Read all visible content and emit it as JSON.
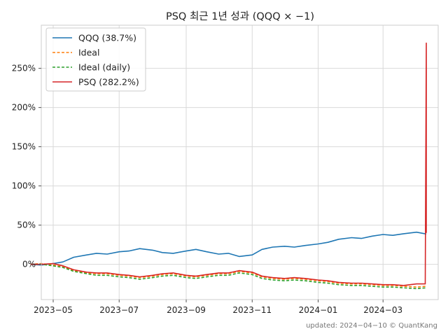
{
  "chart_data": {
    "type": "line",
    "title": "PSQ 최근 1년 성과 (QQQ × −1)",
    "xlabel": "",
    "ylabel": "",
    "x_tick_labels": [
      "2023−05",
      "2023−07",
      "2023−09",
      "2023−11",
      "2024−01",
      "2024−03"
    ],
    "y_tick_labels": [
      "0%",
      "50%",
      "100%",
      "150%",
      "200%",
      "250%"
    ],
    "y_ticks": [
      0,
      50,
      100,
      150,
      200,
      250
    ],
    "x_ticks": [
      "2023-05-01",
      "2023-07-01",
      "2023-09-01",
      "2023-11-01",
      "2024-01-01",
      "2024-03-01"
    ],
    "xlim": [
      "2023-04-20",
      "2024-04-21"
    ],
    "ylim": [
      -45,
      305
    ],
    "grid": true,
    "legend_position": "top-left",
    "series": [
      {
        "name": "QQQ (38.7%)",
        "color": "#1f77b4",
        "style": "solid",
        "x": [
          "2023-04-10",
          "2023-04-20",
          "2023-05-01",
          "2023-05-10",
          "2023-05-20",
          "2023-06-01",
          "2023-06-10",
          "2023-06-20",
          "2023-07-01",
          "2023-07-10",
          "2023-07-20",
          "2023-08-01",
          "2023-08-10",
          "2023-08-20",
          "2023-09-01",
          "2023-09-10",
          "2023-09-20",
          "2023-10-01",
          "2023-10-10",
          "2023-10-20",
          "2023-11-01",
          "2023-11-10",
          "2023-11-20",
          "2023-12-01",
          "2023-12-10",
          "2023-12-20",
          "2024-01-01",
          "2024-01-10",
          "2024-01-20",
          "2024-02-01",
          "2024-02-10",
          "2024-02-20",
          "2024-03-01",
          "2024-03-10",
          "2024-03-20",
          "2024-04-01",
          "2024-04-10"
        ],
        "values": [
          0,
          -1,
          1,
          3,
          9,
          12,
          14,
          13,
          16,
          17,
          20,
          18,
          15,
          14,
          17,
          19,
          16,
          13,
          14,
          10,
          12,
          19,
          22,
          23,
          22,
          24,
          26,
          28,
          32,
          34,
          33,
          36,
          38,
          37,
          39,
          41,
          38.7
        ]
      },
      {
        "name": "Ideal",
        "color": "#ff7f0e",
        "style": "dashed",
        "x": [
          "2023-04-10",
          "2023-04-20",
          "2023-05-01",
          "2023-05-10",
          "2023-05-20",
          "2023-06-01",
          "2023-06-10",
          "2023-06-20",
          "2023-07-01",
          "2023-07-10",
          "2023-07-20",
          "2023-08-01",
          "2023-08-10",
          "2023-08-20",
          "2023-09-01",
          "2023-09-10",
          "2023-09-20",
          "2023-10-01",
          "2023-10-10",
          "2023-10-20",
          "2023-11-01",
          "2023-11-10",
          "2023-11-20",
          "2023-12-01",
          "2023-12-10",
          "2023-12-20",
          "2024-01-01",
          "2024-01-10",
          "2024-01-20",
          "2024-02-01",
          "2024-02-10",
          "2024-02-20",
          "2024-03-01",
          "2024-03-10",
          "2024-03-20",
          "2024-04-01",
          "2024-04-10"
        ],
        "values": [
          0,
          1,
          -1,
          -3,
          -8,
          -11,
          -12,
          -12,
          -14,
          -15,
          -17,
          -15,
          -13,
          -12,
          -15,
          -16,
          -14,
          -12,
          -12,
          -9,
          -11,
          -16,
          -18,
          -19,
          -18,
          -19,
          -21,
          -22,
          -24,
          -25,
          -25,
          -26,
          -27,
          -27,
          -28,
          -29,
          -28
        ]
      },
      {
        "name": "Ideal (daily)",
        "color": "#2ca02c",
        "style": "dashed",
        "x": [
          "2023-04-10",
          "2023-04-20",
          "2023-05-01",
          "2023-05-10",
          "2023-05-20",
          "2023-06-01",
          "2023-06-10",
          "2023-06-20",
          "2023-07-01",
          "2023-07-10",
          "2023-07-20",
          "2023-08-01",
          "2023-08-10",
          "2023-08-20",
          "2023-09-01",
          "2023-09-10",
          "2023-09-20",
          "2023-10-01",
          "2023-10-10",
          "2023-10-20",
          "2023-11-01",
          "2023-11-10",
          "2023-11-20",
          "2023-12-01",
          "2023-12-10",
          "2023-12-20",
          "2024-01-01",
          "2024-01-10",
          "2024-01-20",
          "2024-02-01",
          "2024-02-10",
          "2024-02-20",
          "2024-03-01",
          "2024-03-10",
          "2024-03-20",
          "2024-04-01",
          "2024-04-10"
        ],
        "values": [
          0,
          0,
          -2,
          -4,
          -9,
          -12,
          -14,
          -14,
          -16,
          -17,
          -19,
          -17,
          -15,
          -14,
          -17,
          -18,
          -16,
          -14,
          -14,
          -11,
          -13,
          -18,
          -20,
          -21,
          -20,
          -21,
          -23,
          -24,
          -26,
          -27,
          -27,
          -28,
          -29,
          -29,
          -30,
          -31,
          -30
        ]
      },
      {
        "name": "PSQ (282.2%)",
        "color": "#d62728",
        "style": "solid",
        "x": [
          "2023-04-10",
          "2023-04-20",
          "2023-05-01",
          "2023-05-10",
          "2023-05-20",
          "2023-06-01",
          "2023-06-10",
          "2023-06-20",
          "2023-07-01",
          "2023-07-10",
          "2023-07-20",
          "2023-08-01",
          "2023-08-10",
          "2023-08-20",
          "2023-09-01",
          "2023-09-10",
          "2023-09-20",
          "2023-10-01",
          "2023-10-10",
          "2023-10-20",
          "2023-11-01",
          "2023-11-10",
          "2023-11-20",
          "2023-12-01",
          "2023-12-10",
          "2023-12-20",
          "2024-01-01",
          "2024-01-10",
          "2024-01-20",
          "2024-02-01",
          "2024-02-10",
          "2024-02-20",
          "2024-03-01",
          "2024-03-10",
          "2024-03-20",
          "2024-04-01",
          "2024-04-09",
          "2024-04-10",
          "2024-04-10"
        ],
        "values": [
          0,
          0,
          1,
          -2,
          -7,
          -10,
          -11,
          -11,
          -13,
          -14,
          -16,
          -14,
          -12,
          -11,
          -14,
          -15,
          -13,
          -11,
          -11,
          -8,
          -10,
          -15,
          -17,
          -18,
          -17,
          -18,
          -20,
          -21,
          -23,
          -24,
          -24,
          -25,
          -26,
          -26,
          -27,
          -25,
          -25,
          282.2,
          40
        ]
      }
    ]
  },
  "footer": "updated: 2024−04−10 © QuantKang"
}
